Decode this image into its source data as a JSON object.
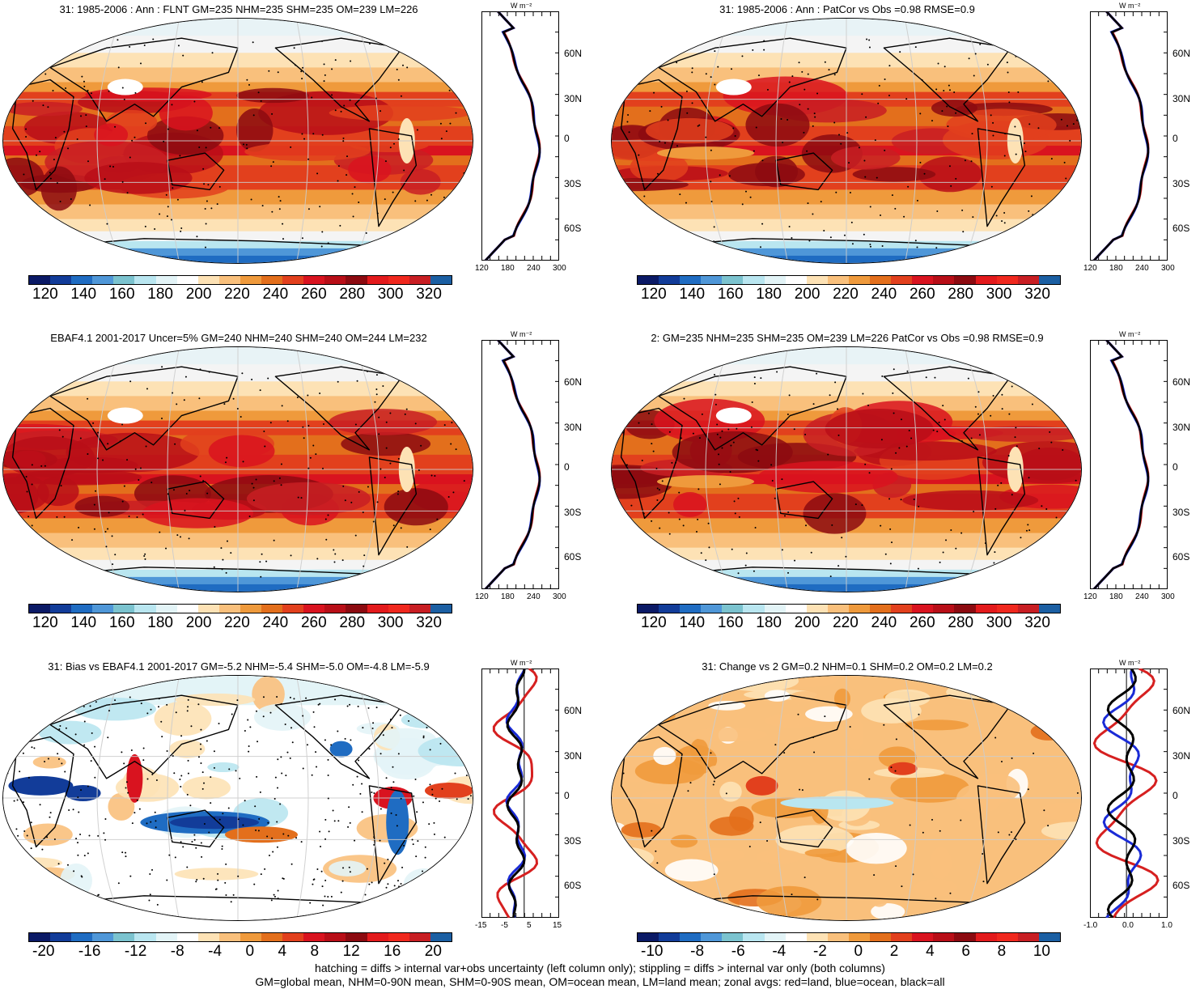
{
  "panels": [
    {
      "title": "31: 1985-2006 : Ann : FLNT GM=235 NHM=235 SHM=235 OM=239 LM=226",
      "kind": "abs"
    },
    {
      "title": "31: 1985-2006 : Ann : PatCor vs Obs =0.98 RMSE=0.9",
      "kind": "abs"
    },
    {
      "title": "EBAF4.1 2001-2017 Uncer=5% GM=240 NHM=240 SHM=240 OM=244 LM=232",
      "kind": "abs"
    },
    {
      "title": "2: GM=235 NHM=235 SHM=235 OM=239 LM=226 PatCor vs Obs =0.98 RMSE=0.9",
      "kind": "abs"
    },
    {
      "title": "31: Bias vs EBAF4.1 2001-2017 GM=-5.2 NHM=-5.4 SHM=-5.0 OM=-4.8 LM=-5.9",
      "kind": "bias"
    },
    {
      "title": "31: Change vs 2 GM=0.2 NHM=0.1 SHM=0.2 OM=0.2 LM=0.2",
      "kind": "change"
    }
  ],
  "colorbars": {
    "abs": {
      "labels": [
        "120",
        "140",
        "160",
        "180",
        "200",
        "220",
        "240",
        "260",
        "280",
        "300",
        "320"
      ]
    },
    "bias": {
      "labels": [
        "-20",
        "-16",
        "-12",
        "-8",
        "-4",
        "0",
        "4",
        "8",
        "12",
        "16",
        "20"
      ]
    },
    "change": {
      "labels": [
        "-10",
        "-8",
        "-6",
        "-4",
        "-2",
        "0",
        "2",
        "4",
        "6",
        "8",
        "10"
      ]
    }
  },
  "zonal_axes": {
    "unit": "W m⁻²",
    "lat_labels": [
      "60N",
      "30N",
      "0",
      "30S",
      "60S"
    ],
    "abs_x": [
      "120",
      "180",
      "240",
      "300"
    ],
    "bias_x": [
      "-15",
      "-5",
      "5",
      "15"
    ],
    "change_x": [
      "-1.0",
      "0.0",
      "1.0"
    ]
  },
  "colors": {
    "palette": [
      "#0b1a66",
      "#123c99",
      "#1f6cc2",
      "#4f97d8",
      "#7bc3cf",
      "#b9e6f0",
      "#e3f4f7",
      "#ffffff",
      "#fde2b5",
      "#f9c07c",
      "#ef9a3c",
      "#e36f1c",
      "#e2401d",
      "#d9131f",
      "#b80e17",
      "#8c0a10",
      "#e31a1c",
      "#f0281e",
      "#c81e23",
      "#1b5fa3"
    ],
    "land": "#d62020",
    "ocean": "#1a2bd6",
    "all": "#000000"
  },
  "footer": {
    "line1": "hatching = diffs > internal var+obs uncertainty (left column only); stippling = diffs > internal var only (both columns)",
    "line2": "GM=global mean, NHM=0-90N mean, SHM=0-90S mean, OM=ocean mean, LM=land mean; zonal avgs: red=land, blue=ocean, black=all"
  }
}
